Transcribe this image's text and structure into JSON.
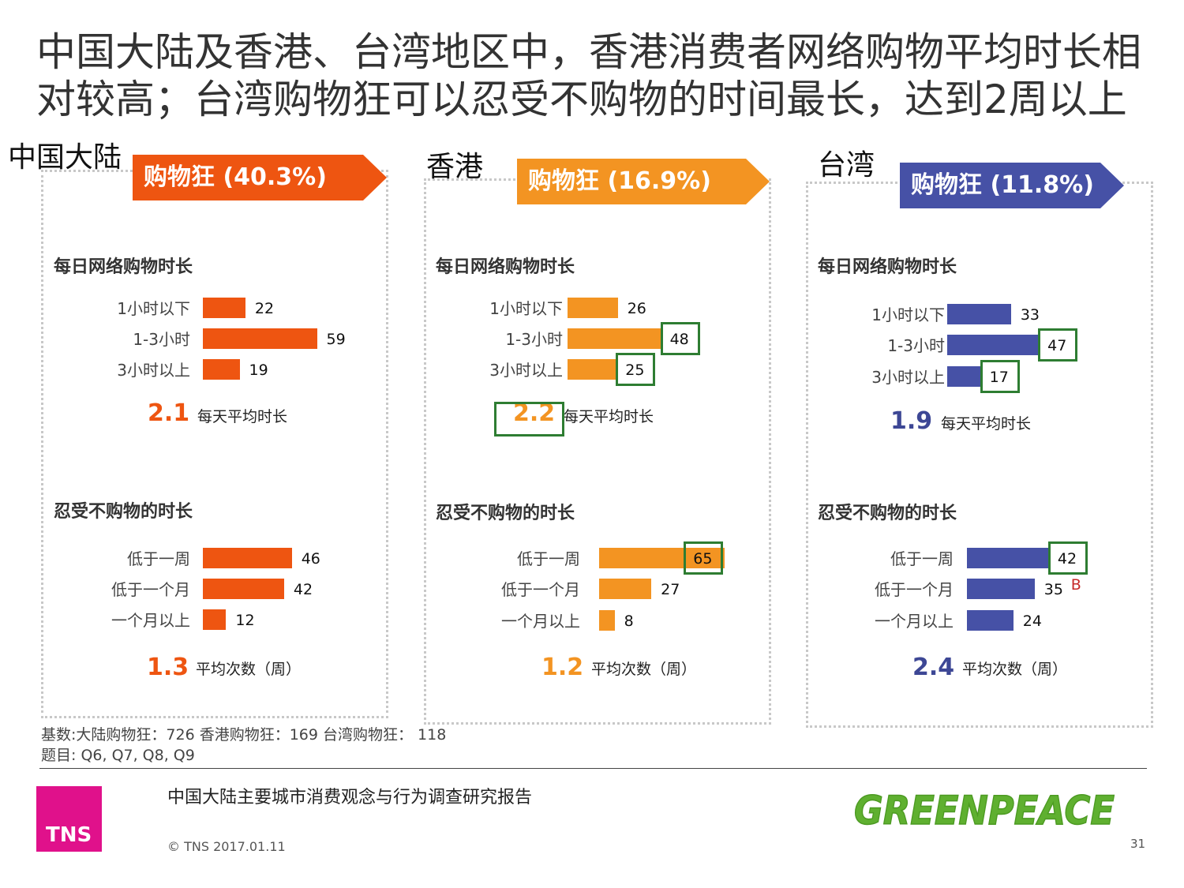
{
  "title": {
    "line1": "中国大陆及香港、台湾地区中，香港消费者网络购物平均时长相",
    "line2": "对较高；台湾购物狂可以忍受不购物的时间最长，达到2周以上"
  },
  "panels": [
    {
      "region": "中国大陆",
      "banner": "购物狂 (40.3%)",
      "color": "#ee5511",
      "daily_title": "每日网络购物时长",
      "avg_daily": "2.1",
      "avg_daily_label": "每天平均时长",
      "tolerate_title": "忍受不购物的时长",
      "avg_weekly": "1.3",
      "avg_weekly_label": "平均次数（周）"
    },
    {
      "region": "香港",
      "banner": "购物狂 (16.9%)",
      "color": "#f39422",
      "daily_title": "每日网络购物时长",
      "avg_daily": "2.2",
      "avg_daily_label": "每天平均时长",
      "tolerate_title": "忍受不购物的时长",
      "avg_weekly": "1.2",
      "avg_weekly_label": "平均次数（周）"
    },
    {
      "region": "台湾",
      "banner": "购物狂 (11.8%)",
      "color": "#4651a6",
      "daily_title": "每日网络购物时长",
      "avg_daily": "1.9",
      "avg_daily_label": "每天平均时长",
      "tolerate_title": "忍受不购物的时长",
      "avg_weekly": "2.4",
      "avg_weekly_label": "平均次数（周）"
    }
  ],
  "chart_data": [
    {
      "type": "bar",
      "orientation": "horizontal",
      "title": "每日网络购物时长",
      "categories": [
        "1小时以下",
        "1-3小时",
        "3小时以上"
      ],
      "series": [
        {
          "name": "中国大陆",
          "values": [
            22,
            59,
            19
          ]
        },
        {
          "name": "香港",
          "values": [
            26,
            48,
            25
          ]
        },
        {
          "name": "台湾",
          "values": [
            33,
            47,
            17
          ]
        }
      ],
      "averages": {
        "中国大陆": 2.1,
        "香港": 2.2,
        "台湾": 1.9
      },
      "highlighted": {
        "香港": [
          1,
          2
        ],
        "台湾": [
          1,
          2
        ]
      }
    },
    {
      "type": "bar",
      "orientation": "horizontal",
      "title": "忍受不购物的时长",
      "categories": [
        "低于一周",
        "低于一个月",
        "一个月以上"
      ],
      "series": [
        {
          "name": "中国大陆",
          "values": [
            46,
            42,
            12
          ]
        },
        {
          "name": "香港",
          "values": [
            65,
            27,
            8
          ]
        },
        {
          "name": "台湾",
          "values": [
            42,
            35,
            24
          ]
        }
      ],
      "averages": {
        "中国大陆": 1.3,
        "香港": 1.2,
        "台湾": 2.4
      },
      "highlighted": {
        "香港": [
          0
        ],
        "台湾": [
          0
        ]
      },
      "significance": {
        "台湾": {
          "index": 1,
          "letter": "B"
        }
      }
    }
  ],
  "footer": {
    "base": "基数:大陆购物狂：726 香港购物狂：169  台湾购物狂： 118",
    "questions": "题目: Q6, Q7, Q8, Q9",
    "report": "中国大陆主要城市消费观念与行为调查研究报告",
    "copyright": "© TNS 2017.01.11",
    "page": "31",
    "tns_logo": "TNS",
    "greenpeace_logo": "GREENPEACE"
  }
}
